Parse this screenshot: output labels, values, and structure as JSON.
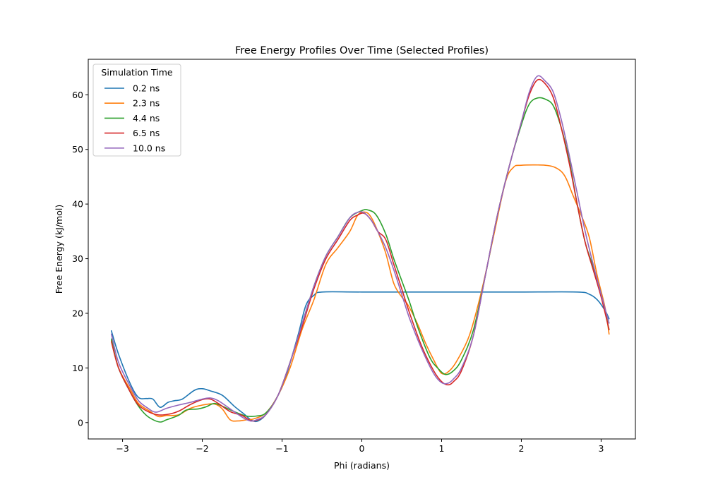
{
  "chart_data": {
    "type": "line",
    "title": "Free Energy Profiles Over Time (Selected Profiles)",
    "xlabel": "Phi (radians)",
    "ylabel": "Free Energy (kJ/mol)",
    "xlim": [
      -3.43,
      3.43
    ],
    "ylim": [
      -3.0,
      66.5
    ],
    "xticks": [
      -3,
      -2,
      -1,
      0,
      1,
      2,
      3
    ],
    "xtick_labels": [
      "−3",
      "−2",
      "−1",
      "0",
      "1",
      "2",
      "3"
    ],
    "yticks": [
      0,
      10,
      20,
      30,
      40,
      50,
      60
    ],
    "ytick_labels": [
      "0",
      "10",
      "20",
      "30",
      "40",
      "50",
      "60"
    ],
    "grid": false,
    "legend": {
      "title": "Simulation Time",
      "placement": "top-left"
    },
    "series": [
      {
        "name": "0.2 ns",
        "color": "#1f77b4",
        "points": [
          [
            -3.14,
            16.8
          ],
          [
            -3.05,
            12.5
          ],
          [
            -2.9,
            7.0
          ],
          [
            -2.8,
            4.6
          ],
          [
            -2.7,
            4.4
          ],
          [
            -2.62,
            4.3
          ],
          [
            -2.53,
            2.8
          ],
          [
            -2.43,
            3.7
          ],
          [
            -2.35,
            4.0
          ],
          [
            -2.25,
            4.3
          ],
          [
            -2.1,
            5.9
          ],
          [
            -2.0,
            6.2
          ],
          [
            -1.9,
            5.8
          ],
          [
            -1.75,
            5.0
          ],
          [
            -1.6,
            3.0
          ],
          [
            -1.48,
            1.6
          ],
          [
            -1.38,
            0.4
          ],
          [
            -1.3,
            0.3
          ],
          [
            -1.2,
            1.5
          ],
          [
            -1.05,
            5.0
          ],
          [
            -0.95,
            8.5
          ],
          [
            -0.8,
            16.0
          ],
          [
            -0.7,
            21.5
          ],
          [
            -0.6,
            23.3
          ],
          [
            -0.5,
            23.9
          ],
          [
            0.0,
            23.9
          ],
          [
            1.0,
            23.9
          ],
          [
            2.0,
            23.9
          ],
          [
            2.7,
            23.9
          ],
          [
            2.85,
            23.5
          ],
          [
            2.95,
            22.5
          ],
          [
            3.05,
            20.5
          ],
          [
            3.1,
            19.0
          ]
        ]
      },
      {
        "name": "2.3 ns",
        "color": "#ff7f0e",
        "points": [
          [
            -3.14,
            15.0
          ],
          [
            -3.05,
            10.0
          ],
          [
            -2.9,
            6.0
          ],
          [
            -2.8,
            3.5
          ],
          [
            -2.65,
            2.0
          ],
          [
            -2.55,
            1.1
          ],
          [
            -2.45,
            1.3
          ],
          [
            -2.3,
            1.4
          ],
          [
            -2.15,
            2.6
          ],
          [
            -2.0,
            3.2
          ],
          [
            -1.85,
            3.4
          ],
          [
            -1.75,
            2.5
          ],
          [
            -1.65,
            0.5
          ],
          [
            -1.55,
            0.3
          ],
          [
            -1.45,
            0.5
          ],
          [
            -1.35,
            0.7
          ],
          [
            -1.2,
            1.8
          ],
          [
            -1.05,
            5.0
          ],
          [
            -0.9,
            10.0
          ],
          [
            -0.75,
            17.0
          ],
          [
            -0.6,
            22.5
          ],
          [
            -0.45,
            29.0
          ],
          [
            -0.3,
            32.0
          ],
          [
            -0.15,
            35.0
          ],
          [
            -0.05,
            38.0
          ],
          [
            0.05,
            38.5
          ],
          [
            0.12,
            37.5
          ],
          [
            0.2,
            35.0
          ],
          [
            0.3,
            31.0
          ],
          [
            0.4,
            25.5
          ],
          [
            0.5,
            23.0
          ],
          [
            0.58,
            21.5
          ],
          [
            0.7,
            18.0
          ],
          [
            0.8,
            14.5
          ],
          [
            0.9,
            11.5
          ],
          [
            1.0,
            9.0
          ],
          [
            1.1,
            9.5
          ],
          [
            1.2,
            11.5
          ],
          [
            1.35,
            16.0
          ],
          [
            1.5,
            24.0
          ],
          [
            1.65,
            34.0
          ],
          [
            1.8,
            44.0
          ],
          [
            1.9,
            46.7
          ],
          [
            2.0,
            47.1
          ],
          [
            2.3,
            47.1
          ],
          [
            2.45,
            46.5
          ],
          [
            2.55,
            45.0
          ],
          [
            2.65,
            41.5
          ],
          [
            2.75,
            38.0
          ],
          [
            2.85,
            34.0
          ],
          [
            2.95,
            27.0
          ],
          [
            3.05,
            21.0
          ],
          [
            3.1,
            16.2
          ]
        ]
      },
      {
        "name": "4.4 ns",
        "color": "#2ca02c",
        "points": [
          [
            -3.14,
            15.3
          ],
          [
            -3.05,
            10.0
          ],
          [
            -2.9,
            5.5
          ],
          [
            -2.8,
            3.0
          ],
          [
            -2.7,
            1.3
          ],
          [
            -2.6,
            0.4
          ],
          [
            -2.52,
            0.1
          ],
          [
            -2.45,
            0.5
          ],
          [
            -2.3,
            1.3
          ],
          [
            -2.2,
            2.3
          ],
          [
            -2.05,
            2.5
          ],
          [
            -1.95,
            2.9
          ],
          [
            -1.85,
            3.5
          ],
          [
            -1.75,
            3.0
          ],
          [
            -1.6,
            2.0
          ],
          [
            -1.45,
            1.2
          ],
          [
            -1.32,
            1.2
          ],
          [
            -1.2,
            1.8
          ],
          [
            -1.05,
            5.0
          ],
          [
            -0.9,
            11.0
          ],
          [
            -0.75,
            18.0
          ],
          [
            -0.6,
            25.0
          ],
          [
            -0.45,
            30.5
          ],
          [
            -0.3,
            34.0
          ],
          [
            -0.15,
            37.5
          ],
          [
            0.0,
            38.8
          ],
          [
            0.08,
            38.9
          ],
          [
            0.18,
            38.0
          ],
          [
            0.3,
            34.5
          ],
          [
            0.4,
            30.0
          ],
          [
            0.5,
            26.0
          ],
          [
            0.6,
            22.0
          ],
          [
            0.7,
            17.5
          ],
          [
            0.85,
            12.0
          ],
          [
            0.95,
            10.0
          ],
          [
            1.05,
            8.8
          ],
          [
            1.15,
            9.5
          ],
          [
            1.25,
            11.5
          ],
          [
            1.4,
            17.0
          ],
          [
            1.55,
            27.0
          ],
          [
            1.7,
            38.0
          ],
          [
            1.85,
            47.0
          ],
          [
            2.0,
            54.5
          ],
          [
            2.1,
            58.3
          ],
          [
            2.2,
            59.4
          ],
          [
            2.3,
            59.2
          ],
          [
            2.4,
            58.0
          ],
          [
            2.5,
            54.0
          ],
          [
            2.6,
            48.0
          ],
          [
            2.7,
            40.0
          ],
          [
            2.8,
            33.0
          ],
          [
            2.9,
            28.5
          ],
          [
            3.0,
            23.5
          ],
          [
            3.1,
            17.0
          ]
        ]
      },
      {
        "name": "6.5 ns",
        "color": "#d62728",
        "points": [
          [
            -3.14,
            14.8
          ],
          [
            -3.05,
            10.0
          ],
          [
            -2.9,
            5.5
          ],
          [
            -2.8,
            3.2
          ],
          [
            -2.68,
            2.0
          ],
          [
            -2.55,
            1.4
          ],
          [
            -2.4,
            1.6
          ],
          [
            -2.28,
            2.2
          ],
          [
            -2.15,
            3.3
          ],
          [
            -2.0,
            4.2
          ],
          [
            -1.9,
            4.3
          ],
          [
            -1.8,
            3.5
          ],
          [
            -1.65,
            2.0
          ],
          [
            -1.5,
            1.3
          ],
          [
            -1.4,
            0.4
          ],
          [
            -1.32,
            0.4
          ],
          [
            -1.2,
            1.5
          ],
          [
            -1.05,
            5.0
          ],
          [
            -0.9,
            11.0
          ],
          [
            -0.75,
            17.5
          ],
          [
            -0.6,
            24.5
          ],
          [
            -0.45,
            30.0
          ],
          [
            -0.3,
            33.5
          ],
          [
            -0.15,
            37.0
          ],
          [
            -0.05,
            38.0
          ],
          [
            0.03,
            38.3
          ],
          [
            0.12,
            37.0
          ],
          [
            0.2,
            35.0
          ],
          [
            0.3,
            33.5
          ],
          [
            0.4,
            29.0
          ],
          [
            0.5,
            24.5
          ],
          [
            0.6,
            20.0
          ],
          [
            0.75,
            14.0
          ],
          [
            0.9,
            9.5
          ],
          [
            1.0,
            7.5
          ],
          [
            1.08,
            6.9
          ],
          [
            1.15,
            7.5
          ],
          [
            1.25,
            9.5
          ],
          [
            1.4,
            16.0
          ],
          [
            1.55,
            27.0
          ],
          [
            1.7,
            38.0
          ],
          [
            1.85,
            47.0
          ],
          [
            2.0,
            55.0
          ],
          [
            2.1,
            60.0
          ],
          [
            2.2,
            62.7
          ],
          [
            2.3,
            62.0
          ],
          [
            2.4,
            59.5
          ],
          [
            2.5,
            54.0
          ],
          [
            2.6,
            47.5
          ],
          [
            2.7,
            40.0
          ],
          [
            2.8,
            33.0
          ],
          [
            2.9,
            28.0
          ],
          [
            3.0,
            23.0
          ],
          [
            3.1,
            17.0
          ]
        ]
      },
      {
        "name": "10.0 ns",
        "color": "#9467bd",
        "points": [
          [
            -3.14,
            16.2
          ],
          [
            -3.05,
            11.0
          ],
          [
            -2.9,
            6.5
          ],
          [
            -2.8,
            4.0
          ],
          [
            -2.68,
            2.6
          ],
          [
            -2.58,
            1.9
          ],
          [
            -2.45,
            2.6
          ],
          [
            -2.3,
            3.2
          ],
          [
            -2.15,
            3.7
          ],
          [
            -2.0,
            4.3
          ],
          [
            -1.9,
            4.5
          ],
          [
            -1.8,
            4.0
          ],
          [
            -1.65,
            2.5
          ],
          [
            -1.5,
            1.0
          ],
          [
            -1.4,
            0.3
          ],
          [
            -1.32,
            0.5
          ],
          [
            -1.2,
            1.5
          ],
          [
            -1.05,
            5.0
          ],
          [
            -0.9,
            11.0
          ],
          [
            -0.75,
            18.0
          ],
          [
            -0.6,
            25.0
          ],
          [
            -0.45,
            30.5
          ],
          [
            -0.3,
            34.0
          ],
          [
            -0.15,
            37.5
          ],
          [
            -0.05,
            38.5
          ],
          [
            0.03,
            38.4
          ],
          [
            0.12,
            37.0
          ],
          [
            0.2,
            35.0
          ],
          [
            0.3,
            32.0
          ],
          [
            0.4,
            28.0
          ],
          [
            0.5,
            23.5
          ],
          [
            0.6,
            19.0
          ],
          [
            0.75,
            13.5
          ],
          [
            0.9,
            9.0
          ],
          [
            1.0,
            7.3
          ],
          [
            1.08,
            7.2
          ],
          [
            1.15,
            8.0
          ],
          [
            1.25,
            10.0
          ],
          [
            1.4,
            16.0
          ],
          [
            1.55,
            27.0
          ],
          [
            1.7,
            38.0
          ],
          [
            1.85,
            47.0
          ],
          [
            2.0,
            55.0
          ],
          [
            2.1,
            60.5
          ],
          [
            2.2,
            63.4
          ],
          [
            2.3,
            62.5
          ],
          [
            2.4,
            60.5
          ],
          [
            2.5,
            55.5
          ],
          [
            2.6,
            49.0
          ],
          [
            2.7,
            42.0
          ],
          [
            2.8,
            35.0
          ],
          [
            2.9,
            29.0
          ],
          [
            3.0,
            23.5
          ],
          [
            3.1,
            18.2
          ]
        ]
      }
    ]
  }
}
